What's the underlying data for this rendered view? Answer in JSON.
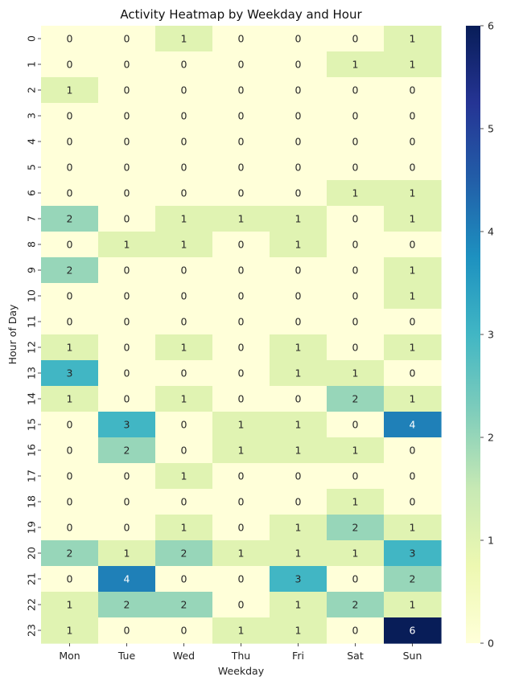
{
  "chart_data": {
    "type": "heatmap",
    "title": "Activity Heatmap by Weekday and Hour",
    "xlabel": "Weekday",
    "ylabel": "Hour of Day",
    "x_categories": [
      "Mon",
      "Tue",
      "Wed",
      "Thu",
      "Fri",
      "Sat",
      "Sun"
    ],
    "y_categories": [
      "0",
      "1",
      "2",
      "3",
      "4",
      "5",
      "6",
      "7",
      "8",
      "9",
      "10",
      "11",
      "12",
      "13",
      "14",
      "15",
      "16",
      "17",
      "18",
      "19",
      "20",
      "21",
      "22",
      "23"
    ],
    "values": [
      [
        0,
        0,
        1,
        0,
        0,
        0,
        1
      ],
      [
        0,
        0,
        0,
        0,
        0,
        1,
        1
      ],
      [
        1,
        0,
        0,
        0,
        0,
        0,
        0
      ],
      [
        0,
        0,
        0,
        0,
        0,
        0,
        0
      ],
      [
        0,
        0,
        0,
        0,
        0,
        0,
        0
      ],
      [
        0,
        0,
        0,
        0,
        0,
        0,
        0
      ],
      [
        0,
        0,
        0,
        0,
        0,
        1,
        1
      ],
      [
        2,
        0,
        1,
        1,
        1,
        0,
        1
      ],
      [
        0,
        1,
        1,
        0,
        1,
        0,
        0
      ],
      [
        2,
        0,
        0,
        0,
        0,
        0,
        1
      ],
      [
        0,
        0,
        0,
        0,
        0,
        0,
        1
      ],
      [
        0,
        0,
        0,
        0,
        0,
        0,
        0
      ],
      [
        1,
        0,
        1,
        0,
        1,
        0,
        1
      ],
      [
        3,
        0,
        0,
        0,
        1,
        1,
        0
      ],
      [
        1,
        0,
        1,
        0,
        0,
        2,
        1
      ],
      [
        0,
        3,
        0,
        1,
        1,
        0,
        4
      ],
      [
        0,
        2,
        0,
        1,
        1,
        1,
        0
      ],
      [
        0,
        0,
        1,
        0,
        0,
        0,
        0
      ],
      [
        0,
        0,
        0,
        0,
        0,
        1,
        0
      ],
      [
        0,
        0,
        1,
        0,
        1,
        2,
        1
      ],
      [
        2,
        1,
        2,
        1,
        1,
        1,
        3
      ],
      [
        0,
        4,
        0,
        0,
        3,
        0,
        2
      ],
      [
        1,
        2,
        2,
        0,
        1,
        2,
        1
      ],
      [
        1,
        0,
        0,
        1,
        1,
        0,
        6
      ]
    ],
    "colorscale": "YlGnBu",
    "vmin": 0,
    "vmax": 6,
    "colorbar_ticks": [
      0,
      1,
      2,
      3,
      4,
      5,
      6
    ],
    "annotated": true,
    "colors": {
      "text_dark": "#262626",
      "text_light": "#ffffff"
    }
  }
}
